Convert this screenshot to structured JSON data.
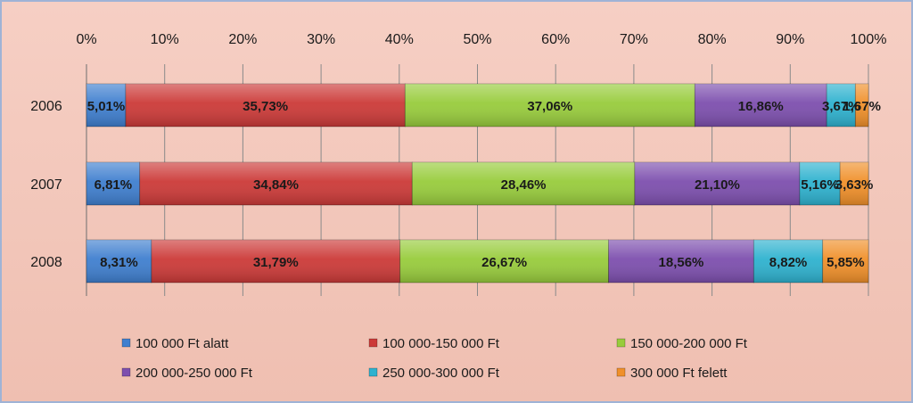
{
  "chart_data": {
    "type": "bar",
    "orientation": "horizontal",
    "stacked": "percent",
    "title": "",
    "xlabel": "",
    "ylabel": "",
    "xlim": [
      0,
      100
    ],
    "x_ticks": [
      "0%",
      "10%",
      "20%",
      "30%",
      "40%",
      "50%",
      "60%",
      "70%",
      "80%",
      "90%",
      "100%"
    ],
    "grid": true,
    "legend_position": "bottom",
    "categories": [
      "2006",
      "2007",
      "2008"
    ],
    "series": [
      {
        "name": "100 000 Ft alatt",
        "color": "#3f7fcf",
        "values": [
          5.01,
          6.81,
          8.31
        ],
        "labels": [
          "5,01%",
          "6,81%",
          "8,31%"
        ]
      },
      {
        "name": "100 000-150 000 Ft",
        "color": "#cc3a38",
        "values": [
          35.73,
          34.84,
          31.79
        ],
        "labels": [
          "35,73%",
          "34,84%",
          "31,79%"
        ]
      },
      {
        "name": "150 000-200 000 Ft",
        "color": "#98cc3c",
        "values": [
          37.06,
          28.46,
          26.67
        ],
        "labels": [
          "37,06%",
          "28,46%",
          "26,67%"
        ]
      },
      {
        "name": "200 000-250 000 Ft",
        "color": "#7d4fae",
        "values": [
          16.86,
          21.1,
          18.56
        ],
        "labels": [
          "16,86%",
          "21,10%",
          "18,56%"
        ]
      },
      {
        "name": "250 000-300 000 Ft",
        "color": "#2eb2cf",
        "values": [
          3.67,
          5.16,
          8.82
        ],
        "labels": [
          "3,67%",
          "5,16%",
          "8,82%"
        ]
      },
      {
        "name": "300 000 Ft felett",
        "color": "#f0902a",
        "values": [
          1.67,
          3.63,
          5.85
        ],
        "labels": [
          "1,67%",
          "3,63%",
          "5,85%"
        ]
      }
    ]
  }
}
